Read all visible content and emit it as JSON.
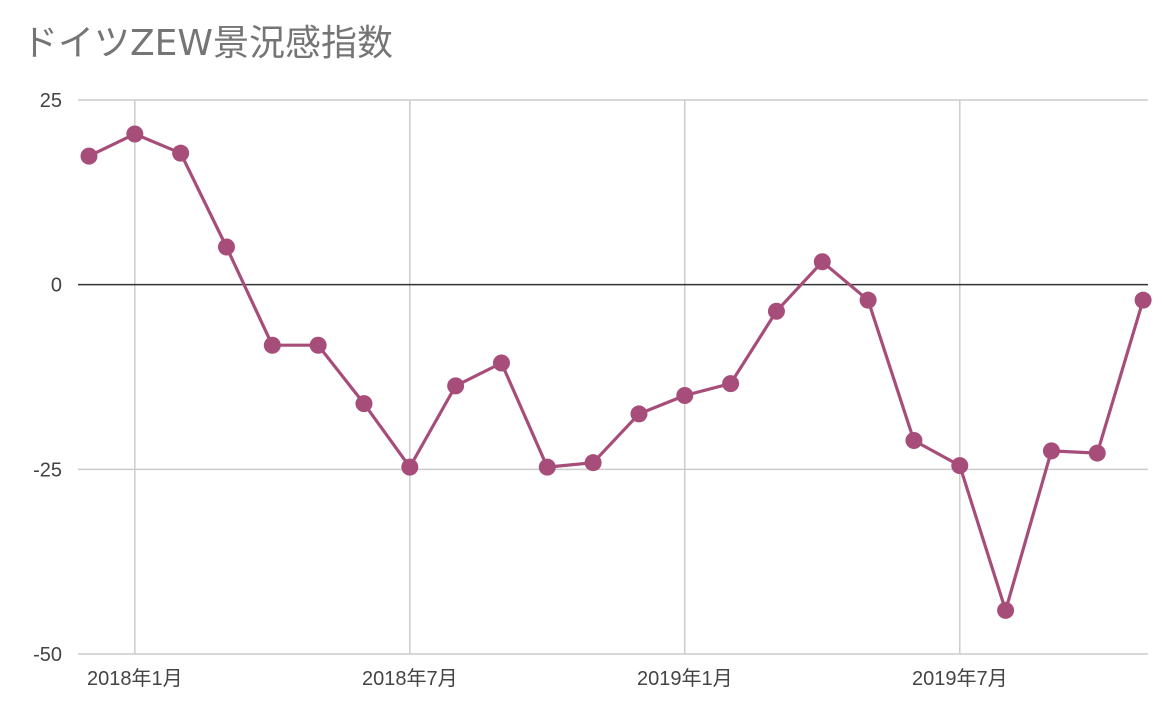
{
  "chart_data": {
    "type": "line",
    "title": "ドイツZEW景況感指数",
    "xlabel": "",
    "ylabel": "",
    "ylim": [
      -50,
      25
    ],
    "yticks": [
      25,
      0,
      -25,
      -50
    ],
    "ytick_labels": [
      "25",
      "0",
      "-25",
      "-50"
    ],
    "x_tick_labels": [
      {
        "label": "2018年1月",
        "index": 1
      },
      {
        "label": "2018年7月",
        "index": 7
      },
      {
        "label": "2019年1月",
        "index": 13
      },
      {
        "label": "2019年7月",
        "index": 19
      }
    ],
    "grid": true,
    "legend": "none",
    "series": [
      {
        "color": "#a64d79",
        "x": [
          "2017年12月",
          "2018年1月",
          "2018年2月",
          "2018年3月",
          "2018年4月",
          "2018年5月",
          "2018年6月",
          "2018年7月",
          "2018年8月",
          "2018年9月",
          "2018年10月",
          "2018年11月",
          "2018年12月",
          "2019年1月",
          "2019年2月",
          "2019年3月",
          "2019年4月",
          "2019年5月",
          "2019年6月",
          "2019年7月",
          "2019年8月",
          "2019年9月",
          "2019年10月",
          "2019年11月"
        ],
        "values": [
          17.4,
          20.4,
          17.8,
          5.1,
          -8.2,
          -8.2,
          -16.1,
          -24.7,
          -13.7,
          -10.6,
          -24.7,
          -24.1,
          -17.5,
          -15.0,
          -13.4,
          -3.6,
          3.1,
          -2.1,
          -21.1,
          -24.5,
          -44.1,
          -22.5,
          -22.8,
          -2.1
        ]
      }
    ]
  }
}
